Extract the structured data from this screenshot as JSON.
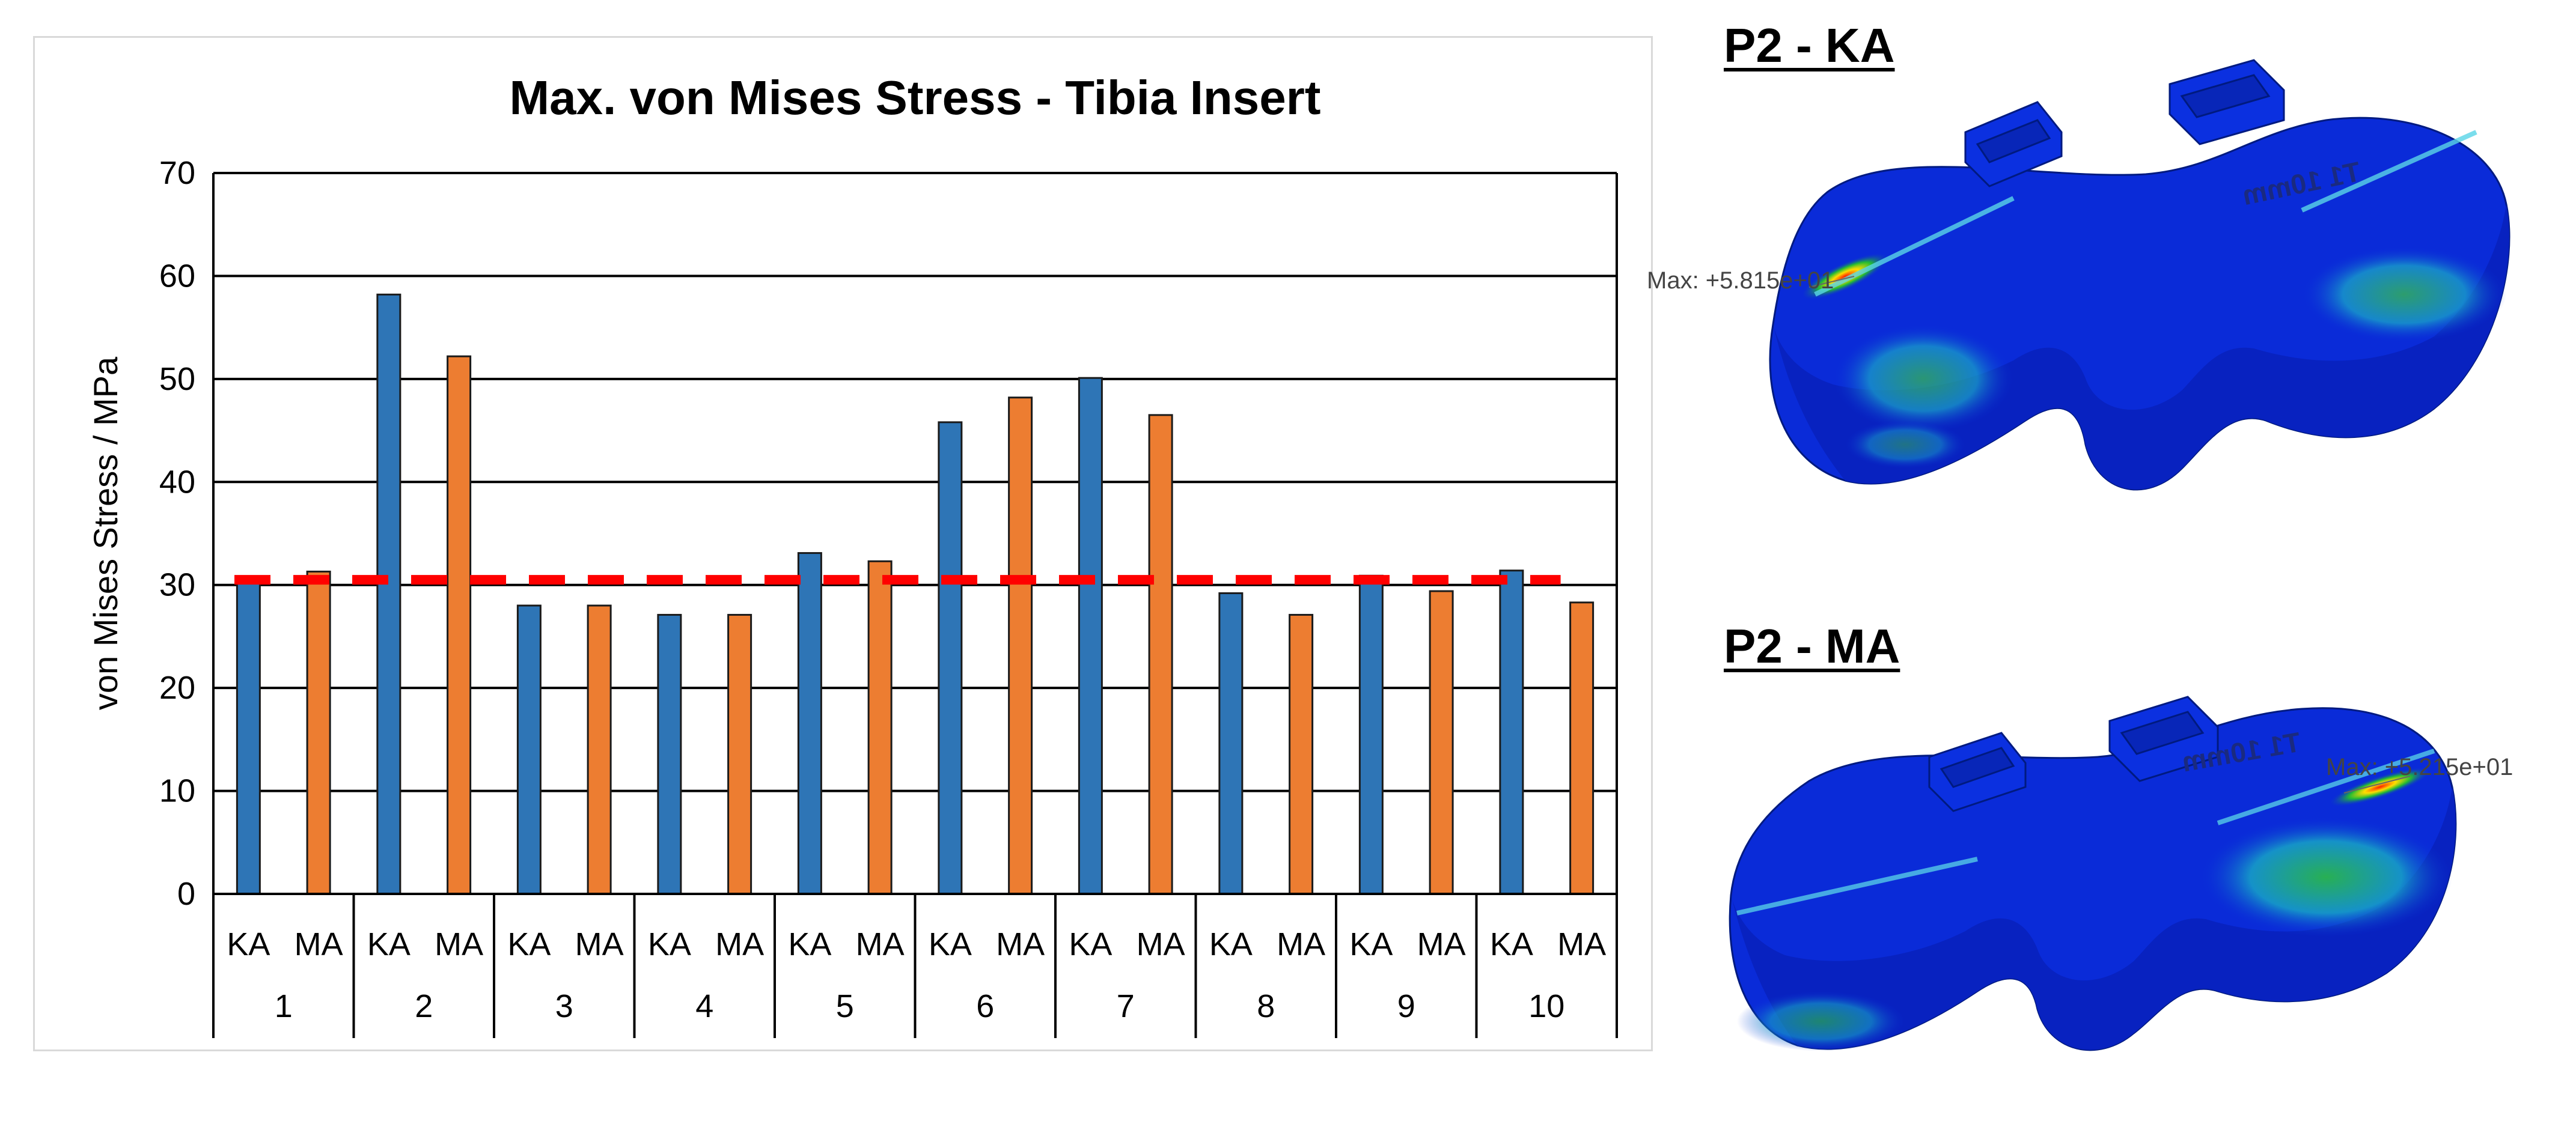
{
  "chart_data": {
    "type": "bar",
    "title": "Max. von Mises Stress - Tibia Insert",
    "ylabel": "von Mises Stress / MPa",
    "xlabel": "",
    "ylim": [
      0,
      70
    ],
    "yticks": [
      0,
      10,
      20,
      30,
      40,
      50,
      60,
      70
    ],
    "grid": true,
    "legend": "none",
    "groups": [
      "1",
      "2",
      "3",
      "4",
      "5",
      "6",
      "7",
      "8",
      "9",
      "10"
    ],
    "subcategories": [
      "KA",
      "MA"
    ],
    "series": [
      {
        "subcategory": "KA",
        "color": "#2e75b6",
        "values": [
          30.8,
          58.2,
          28.0,
          27.1,
          33.1,
          45.8,
          50.1,
          29.2,
          30.9,
          31.4
        ]
      },
      {
        "subcategory": "MA",
        "color": "#ed7d31",
        "values": [
          31.3,
          52.2,
          28.0,
          27.1,
          32.3,
          48.2,
          46.5,
          27.1,
          29.4,
          28.3
        ]
      }
    ],
    "reference_line": {
      "value": 30.5,
      "color": "#ff0000",
      "style": "dashed"
    }
  },
  "fem_panels": [
    {
      "label": "P2 - KA",
      "max_text": "Max: +5.815e+01",
      "emboss": "T1 10mm"
    },
    {
      "label": "P2 - MA",
      "max_text": "Max: +5.215e+01",
      "emboss": "T1 10mm"
    }
  ]
}
